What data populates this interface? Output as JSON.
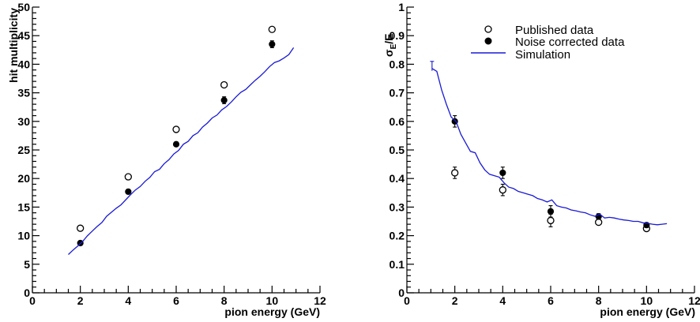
{
  "chart_data": [
    {
      "type": "scatter",
      "xlabel": "pion energy (GeV)",
      "ylabel": "hit multiplicity",
      "xlim": [
        0,
        12
      ],
      "ylim": [
        0,
        50
      ],
      "x_ticks": [
        "0",
        "2",
        "4",
        "6",
        "8",
        "10",
        "12"
      ],
      "y_ticks": [
        "0",
        "5",
        "10",
        "15",
        "20",
        "25",
        "30",
        "35",
        "40",
        "45",
        "50"
      ],
      "x_tick_values": [
        0,
        2,
        4,
        6,
        8,
        10,
        12
      ],
      "y_tick_values": [
        0,
        5,
        10,
        15,
        20,
        25,
        30,
        35,
        40,
        45,
        50
      ],
      "x_minor_step": 0.5,
      "y_minor_step": 1,
      "series": [
        {
          "marker": "open-circle",
          "color": "#000000",
          "points": [
            {
              "x": 2,
              "y": 11.3
            },
            {
              "x": 4,
              "y": 20.3
            },
            {
              "x": 6,
              "y": 28.6
            },
            {
              "x": 8,
              "y": 36.4
            },
            {
              "x": 10,
              "y": 46.1
            }
          ]
        },
        {
          "marker": "filled-circle",
          "color": "#000000",
          "points": [
            {
              "x": 2,
              "y": 8.7,
              "err": 0.4
            },
            {
              "x": 4,
              "y": 17.7,
              "err": 0.4
            },
            {
              "x": 6,
              "y": 26.0,
              "err": 0.4
            },
            {
              "x": 8,
              "y": 33.7,
              "err": 0.6
            },
            {
              "x": 10,
              "y": 43.5,
              "err": 0.6
            }
          ]
        },
        {
          "marker": "line",
          "color": "#1a1ad6",
          "points": [
            {
              "x": 1.5,
              "y": 6.7
            },
            {
              "x": 1.7,
              "y": 7.5
            },
            {
              "x": 1.9,
              "y": 8.2
            },
            {
              "x": 2.1,
              "y": 9.0
            },
            {
              "x": 2.3,
              "y": 10.0
            },
            {
              "x": 2.5,
              "y": 10.8
            },
            {
              "x": 2.7,
              "y": 11.6
            },
            {
              "x": 2.9,
              "y": 12.3
            },
            {
              "x": 3.1,
              "y": 13.4
            },
            {
              "x": 3.3,
              "y": 14.1
            },
            {
              "x": 3.5,
              "y": 14.8
            },
            {
              "x": 3.7,
              "y": 15.4
            },
            {
              "x": 3.9,
              "y": 16.3
            },
            {
              "x": 4.1,
              "y": 17.2
            },
            {
              "x": 4.3,
              "y": 18.0
            },
            {
              "x": 4.5,
              "y": 18.6
            },
            {
              "x": 4.7,
              "y": 19.5
            },
            {
              "x": 4.9,
              "y": 20.2
            },
            {
              "x": 5.1,
              "y": 21.2
            },
            {
              "x": 5.3,
              "y": 21.6
            },
            {
              "x": 5.5,
              "y": 22.6
            },
            {
              "x": 5.7,
              "y": 23.3
            },
            {
              "x": 5.9,
              "y": 24.3
            },
            {
              "x": 6.1,
              "y": 24.9
            },
            {
              "x": 6.3,
              "y": 26.0
            },
            {
              "x": 6.5,
              "y": 26.5
            },
            {
              "x": 6.7,
              "y": 27.5
            },
            {
              "x": 6.9,
              "y": 28.0
            },
            {
              "x": 7.1,
              "y": 29.0
            },
            {
              "x": 7.3,
              "y": 29.7
            },
            {
              "x": 7.5,
              "y": 30.6
            },
            {
              "x": 7.7,
              "y": 31.1
            },
            {
              "x": 7.9,
              "y": 32.0
            },
            {
              "x": 8.1,
              "y": 32.6
            },
            {
              "x": 8.3,
              "y": 33.4
            },
            {
              "x": 8.5,
              "y": 34.3
            },
            {
              "x": 8.7,
              "y": 35.1
            },
            {
              "x": 8.9,
              "y": 35.6
            },
            {
              "x": 9.1,
              "y": 36.4
            },
            {
              "x": 9.3,
              "y": 37.2
            },
            {
              "x": 9.5,
              "y": 37.9
            },
            {
              "x": 9.7,
              "y": 38.7
            },
            {
              "x": 9.9,
              "y": 39.6
            },
            {
              "x": 10.1,
              "y": 40.3
            },
            {
              "x": 10.3,
              "y": 40.6
            },
            {
              "x": 10.5,
              "y": 41.1
            },
            {
              "x": 10.7,
              "y": 41.7
            },
            {
              "x": 10.9,
              "y": 42.9
            }
          ]
        }
      ]
    },
    {
      "type": "scatter",
      "xlabel": "pion energy (GeV)",
      "ylabel": "σE/E",
      "ylabel_main": "σ",
      "ylabel_sub": "E",
      "ylabel_tail": "/E",
      "xlim": [
        0,
        12
      ],
      "ylim": [
        0,
        1
      ],
      "x_ticks": [
        "0",
        "2",
        "4",
        "6",
        "8",
        "10",
        "12"
      ],
      "y_ticks": [
        "0",
        "0.1",
        "0.2",
        "0.3",
        "0.4",
        "0.5",
        "0.6",
        "0.7",
        "0.8",
        "0.9",
        "1"
      ],
      "x_tick_values": [
        0,
        2,
        4,
        6,
        8,
        10,
        12
      ],
      "y_tick_values": [
        0,
        0.1,
        0.2,
        0.3,
        0.4,
        0.5,
        0.6,
        0.7,
        0.8,
        0.9,
        1
      ],
      "x_minor_step": 0.5,
      "y_minor_step": 0.02,
      "legend_position": "top-right",
      "series": [
        {
          "name": "Published data",
          "marker": "open-circle",
          "color": "#000000",
          "points": [
            {
              "x": 2,
              "y": 0.42,
              "err": 0.02
            },
            {
              "x": 4,
              "y": 0.36,
              "err": 0.02
            },
            {
              "x": 6,
              "y": 0.253,
              "err": 0.022
            },
            {
              "x": 8,
              "y": 0.247,
              "err": 0.008
            },
            {
              "x": 10,
              "y": 0.225,
              "err": 0.008
            }
          ]
        },
        {
          "name": "Noise corrected data",
          "marker": "filled-circle",
          "color": "#000000",
          "points": [
            {
              "x": 2,
              "y": 0.6,
              "err": 0.02
            },
            {
              "x": 4,
              "y": 0.42,
              "err": 0.02
            },
            {
              "x": 6,
              "y": 0.285,
              "err": 0.02
            },
            {
              "x": 8,
              "y": 0.267,
              "err": 0.01
            },
            {
              "x": 10,
              "y": 0.237,
              "err": 0.008
            }
          ]
        },
        {
          "name": "Simulation",
          "marker": "line",
          "color": "#1a1ad6",
          "points": [
            {
              "x": 1.05,
              "y": 0.785
            },
            {
              "x": 1.25,
              "y": 0.775
            },
            {
              "x": 1.45,
              "y": 0.71
            },
            {
              "x": 1.65,
              "y": 0.66
            },
            {
              "x": 1.85,
              "y": 0.615
            },
            {
              "x": 2.05,
              "y": 0.6
            },
            {
              "x": 2.25,
              "y": 0.555
            },
            {
              "x": 2.45,
              "y": 0.525
            },
            {
              "x": 2.65,
              "y": 0.495
            },
            {
              "x": 2.85,
              "y": 0.49
            },
            {
              "x": 3.05,
              "y": 0.455
            },
            {
              "x": 3.25,
              "y": 0.43
            },
            {
              "x": 3.45,
              "y": 0.415
            },
            {
              "x": 3.65,
              "y": 0.41
            },
            {
              "x": 3.85,
              "y": 0.405
            },
            {
              "x": 4.05,
              "y": 0.385
            },
            {
              "x": 4.25,
              "y": 0.37
            },
            {
              "x": 4.45,
              "y": 0.365
            },
            {
              "x": 4.65,
              "y": 0.355
            },
            {
              "x": 4.85,
              "y": 0.35
            },
            {
              "x": 5.05,
              "y": 0.345
            },
            {
              "x": 5.25,
              "y": 0.34
            },
            {
              "x": 5.45,
              "y": 0.33
            },
            {
              "x": 5.65,
              "y": 0.325
            },
            {
              "x": 5.85,
              "y": 0.318
            },
            {
              "x": 6.05,
              "y": 0.325
            },
            {
              "x": 6.25,
              "y": 0.305
            },
            {
              "x": 6.45,
              "y": 0.3
            },
            {
              "x": 6.65,
              "y": 0.297
            },
            {
              "x": 6.85,
              "y": 0.29
            },
            {
              "x": 7.05,
              "y": 0.287
            },
            {
              "x": 7.25,
              "y": 0.283
            },
            {
              "x": 7.45,
              "y": 0.28
            },
            {
              "x": 7.65,
              "y": 0.273
            },
            {
              "x": 7.85,
              "y": 0.268
            },
            {
              "x": 8.05,
              "y": 0.275
            },
            {
              "x": 8.25,
              "y": 0.262
            },
            {
              "x": 8.45,
              "y": 0.264
            },
            {
              "x": 8.65,
              "y": 0.262
            },
            {
              "x": 8.85,
              "y": 0.258
            },
            {
              "x": 9.05,
              "y": 0.255
            },
            {
              "x": 9.25,
              "y": 0.253
            },
            {
              "x": 9.45,
              "y": 0.25
            },
            {
              "x": 9.65,
              "y": 0.25
            },
            {
              "x": 9.85,
              "y": 0.245
            },
            {
              "x": 10.05,
              "y": 0.243
            },
            {
              "x": 10.25,
              "y": 0.24
            },
            {
              "x": 10.45,
              "y": 0.238
            },
            {
              "x": 10.65,
              "y": 0.24
            },
            {
              "x": 10.85,
              "y": 0.242
            }
          ]
        }
      ]
    }
  ]
}
